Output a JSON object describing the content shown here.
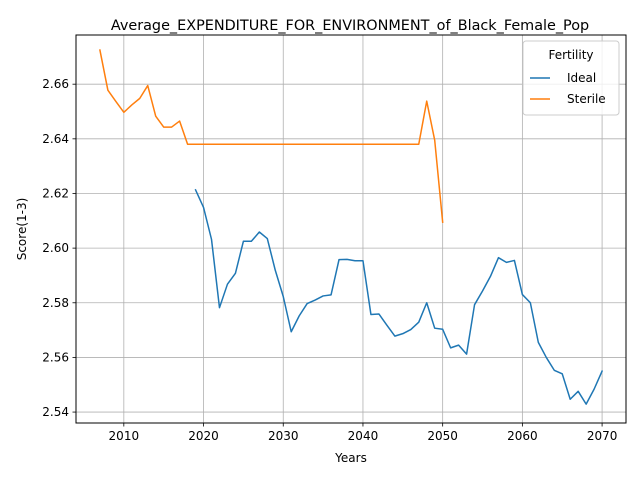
{
  "chart_data": {
    "type": "line",
    "title": "Average_EXPENDITURE_FOR_ENVIRONMENT_of_Black_Female_Pop",
    "xlabel": "Years",
    "ylabel": "Score(1-3)",
    "xlim": [
      2004,
      2073
    ],
    "ylim": [
      2.536,
      2.678
    ],
    "xticks": [
      2010,
      2020,
      2030,
      2040,
      2050,
      2060,
      2070
    ],
    "yticks": [
      2.54,
      2.56,
      2.58,
      2.6,
      2.62,
      2.64,
      2.66
    ],
    "xtick_labels": [
      "2010",
      "2020",
      "2030",
      "2040",
      "2050",
      "2060",
      "2070"
    ],
    "ytick_labels": [
      "2.54",
      "2.56",
      "2.58",
      "2.60",
      "2.62",
      "2.64",
      "2.66"
    ],
    "grid": true,
    "legend": {
      "title": "Fertility",
      "position": "top-right"
    },
    "series": [
      {
        "name": "Ideal",
        "color": "#1f77b4",
        "x": [
          2019,
          2020,
          2021,
          2022,
          2023,
          2024,
          2025,
          2026,
          2027,
          2028,
          2029,
          2030,
          2031,
          2032,
          2033,
          2034,
          2035,
          2036,
          2037,
          2038,
          2039,
          2040,
          2041,
          2042,
          2043,
          2044,
          2045,
          2046,
          2047,
          2048,
          2049,
          2050,
          2051,
          2052,
          2053,
          2054,
          2055,
          2056,
          2057,
          2058,
          2059,
          2060,
          2061,
          2062,
          2063,
          2064,
          2065,
          2066,
          2067,
          2068,
          2069,
          2070
        ],
        "y": [
          2.6213,
          2.6149,
          2.6032,
          2.5782,
          2.5868,
          2.5908,
          2.6025,
          2.6025,
          2.6059,
          2.6035,
          2.5919,
          2.5823,
          2.5694,
          2.5752,
          2.5797,
          2.581,
          2.5825,
          2.5829,
          2.5958,
          2.5959,
          2.5954,
          2.5954,
          2.5757,
          2.5759,
          2.5718,
          2.5678,
          2.5687,
          2.5702,
          2.5729,
          2.58,
          2.5707,
          2.5703,
          2.5635,
          2.5645,
          2.5612,
          2.5793,
          2.5843,
          2.5897,
          2.5965,
          2.5948,
          2.5955,
          2.583,
          2.58,
          2.5655,
          2.56,
          2.5553,
          2.554,
          2.5447,
          2.5476,
          2.5429,
          2.5484,
          2.555
        ]
      },
      {
        "name": "Sterile",
        "color": "#ff7f0e",
        "x": [
          2007,
          2008,
          2009,
          2010,
          2011,
          2012,
          2013,
          2014,
          2015,
          2016,
          2017,
          2018,
          2019,
          2020,
          2025,
          2030,
          2035,
          2040,
          2045,
          2047,
          2048,
          2049,
          2050
        ],
        "y": [
          2.6725,
          2.6578,
          2.6537,
          2.6497,
          2.6524,
          2.6548,
          2.6595,
          2.6483,
          2.6443,
          2.6443,
          2.6465,
          2.638,
          2.638,
          2.638,
          2.638,
          2.638,
          2.638,
          2.638,
          2.638,
          2.638,
          2.6538,
          2.6395,
          2.6095
        ]
      }
    ]
  }
}
